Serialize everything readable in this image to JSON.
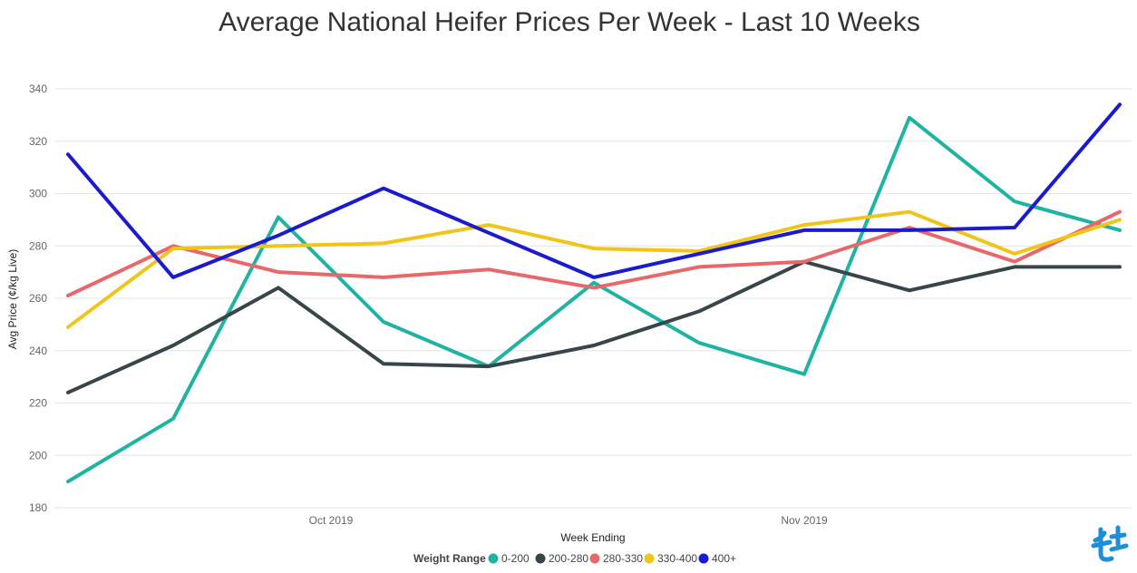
{
  "chart_data": {
    "type": "line",
    "title": "Average National Heifer Prices Per Week - Last 10 Weeks",
    "xlabel": "Week Ending",
    "ylabel": "Avg Price (¢/kg Live)",
    "ylim": [
      180,
      340
    ],
    "yticks": [
      180,
      200,
      220,
      240,
      260,
      280,
      300,
      320,
      340
    ],
    "x_tick_labels": [
      {
        "label": "Oct 2019",
        "position": 2.5
      },
      {
        "label": "Nov 2019",
        "position": 7.0
      }
    ],
    "legend": {
      "title": "Weight Range",
      "placement": "bottom-center"
    },
    "grid": true,
    "x": [
      0,
      1,
      2,
      3,
      4,
      5,
      6,
      7,
      8,
      9,
      10
    ],
    "series": [
      {
        "name": "0-200",
        "color": "#1fb3a4",
        "values": [
          190,
          214,
          291,
          251,
          234,
          266,
          243,
          231,
          329,
          297,
          286
        ]
      },
      {
        "name": "200-280",
        "color": "#374649",
        "values": [
          224,
          242,
          264,
          235,
          234,
          242,
          255,
          274,
          263,
          272,
          272
        ]
      },
      {
        "name": "280-330",
        "color": "#e8686a",
        "values": [
          261,
          280,
          270,
          268,
          271,
          264,
          272,
          274,
          287,
          274,
          293
        ]
      },
      {
        "name": "330-400",
        "color": "#f0c419",
        "values": [
          249,
          279,
          280,
          281,
          288,
          279,
          278,
          288,
          293,
          277,
          290
        ]
      },
      {
        "name": "400+",
        "color": "#1a1acf",
        "values": [
          315,
          268,
          284,
          302,
          285,
          268,
          277,
          286,
          286,
          287,
          334
        ]
      }
    ]
  },
  "logo": {
    "icon": "brand-logo-icon",
    "color": "#1d8fd6"
  }
}
